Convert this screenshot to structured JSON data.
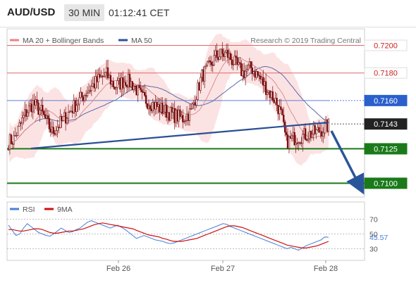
{
  "header": {
    "pair": "AUD/USD",
    "timeframe": "30 MIN",
    "time": "01:12:41 CET"
  },
  "legend": {
    "items": [
      {
        "label": "MA 20 + Bollinger Bands",
        "color": "#f08080"
      },
      {
        "label": "MA 50",
        "color": "#2a5599"
      }
    ],
    "credit": "Research © 2019 Trading Central"
  },
  "colors": {
    "resistance": "#e06666",
    "pivot": "#5b7fd6",
    "support": "#1a7a1a",
    "trend": "#2a4f93",
    "arrow": "#2a5599",
    "candle": "#7a0f0f",
    "bands": "#fcdede",
    "ma50": "#5a6aa8",
    "ma20": "#d89090",
    "rsi": "#4a7fd9",
    "rsi_ma": "#cc1111"
  },
  "chart_data": [
    {
      "type": "candlestick",
      "title": "",
      "x_ticks": [
        "Feb 26",
        "Feb 27",
        "Feb 28"
      ],
      "ylim": [
        0.709,
        0.7212
      ],
      "levels": [
        {
          "value": 0.72,
          "label": "0.7200",
          "kind": "resistance"
        },
        {
          "value": 0.718,
          "label": "0.7180",
          "kind": "resistance"
        },
        {
          "value": 0.716,
          "label": "0.7160",
          "kind": "pivot"
        },
        {
          "value": 0.7143,
          "label": "0.7143",
          "kind": "last"
        },
        {
          "value": 0.7125,
          "label": "0.7125",
          "kind": "support"
        },
        {
          "value": 0.71,
          "label": "0.7100",
          "kind": "support"
        }
      ],
      "close_path": [
        [
          0,
          0.713
        ],
        [
          4,
          0.7132
        ],
        [
          12,
          0.715
        ],
        [
          18,
          0.7158
        ],
        [
          24,
          0.7152
        ],
        [
          32,
          0.7137
        ],
        [
          40,
          0.7146
        ],
        [
          50,
          0.7158
        ],
        [
          58,
          0.7167
        ],
        [
          66,
          0.7175
        ],
        [
          72,
          0.7179
        ],
        [
          78,
          0.717
        ],
        [
          86,
          0.7175
        ],
        [
          92,
          0.7171
        ],
        [
          98,
          0.7162
        ],
        [
          110,
          0.7155
        ],
        [
          120,
          0.715
        ],
        [
          128,
          0.7147
        ],
        [
          134,
          0.7152
        ],
        [
          138,
          0.7165
        ],
        [
          142,
          0.7178
        ],
        [
          148,
          0.7185
        ],
        [
          152,
          0.7192
        ],
        [
          156,
          0.7193
        ],
        [
          160,
          0.7194
        ],
        [
          166,
          0.7187
        ],
        [
          172,
          0.718
        ],
        [
          178,
          0.7184
        ],
        [
          184,
          0.7177
        ],
        [
          190,
          0.7168
        ],
        [
          196,
          0.716
        ],
        [
          200,
          0.715
        ],
        [
          204,
          0.713
        ],
        [
          210,
          0.7133
        ],
        [
          218,
          0.7135
        ],
        [
          226,
          0.7137
        ],
        [
          232,
          0.714
        ],
        [
          235,
          0.7142
        ]
      ],
      "bars": 236
    },
    {
      "type": "line",
      "series": [
        {
          "name": "RSI",
          "values": [
            62,
            55,
            48,
            50,
            58,
            64,
            60,
            56,
            52,
            50,
            48,
            47,
            50,
            54,
            58,
            55,
            52,
            53,
            56,
            58,
            62,
            66,
            68,
            66,
            64,
            62,
            60,
            58,
            60,
            62,
            59,
            56,
            52,
            48,
            44,
            46,
            48,
            46,
            44,
            42,
            41,
            40,
            38,
            37,
            38,
            40,
            42,
            44,
            46,
            48,
            50,
            52,
            54,
            56,
            58,
            60,
            62,
            64,
            63,
            60,
            58,
            56,
            54,
            52,
            50,
            48,
            46,
            44,
            42,
            40,
            38,
            36,
            34,
            32,
            30,
            32,
            30,
            28,
            31,
            34,
            36,
            38,
            40,
            42,
            46,
            45.57
          ]
        },
        {
          "name": "9MA",
          "values": [
            56,
            56,
            55,
            54,
            54,
            55,
            56,
            57,
            57,
            56,
            54,
            52,
            51,
            51,
            52,
            53,
            54,
            54,
            55,
            56,
            57,
            59,
            61,
            63,
            64,
            65,
            64,
            63,
            62,
            61,
            60,
            59,
            58,
            57,
            55,
            53,
            51,
            49,
            48,
            47,
            46,
            44,
            43,
            41,
            40,
            40,
            40,
            41,
            42,
            43,
            44,
            46,
            48,
            50,
            52,
            54,
            56,
            58,
            60,
            61,
            61,
            60,
            59,
            57,
            55,
            53,
            51,
            49,
            47,
            45,
            43,
            41,
            39,
            37,
            35,
            34,
            33,
            32,
            31,
            31,
            32,
            33,
            34,
            36,
            38,
            40
          ]
        }
      ],
      "ylim": [
        20,
        80
      ],
      "y_ticks": [
        "70",
        "50",
        "30"
      ],
      "last_value": "45.57"
    }
  ]
}
